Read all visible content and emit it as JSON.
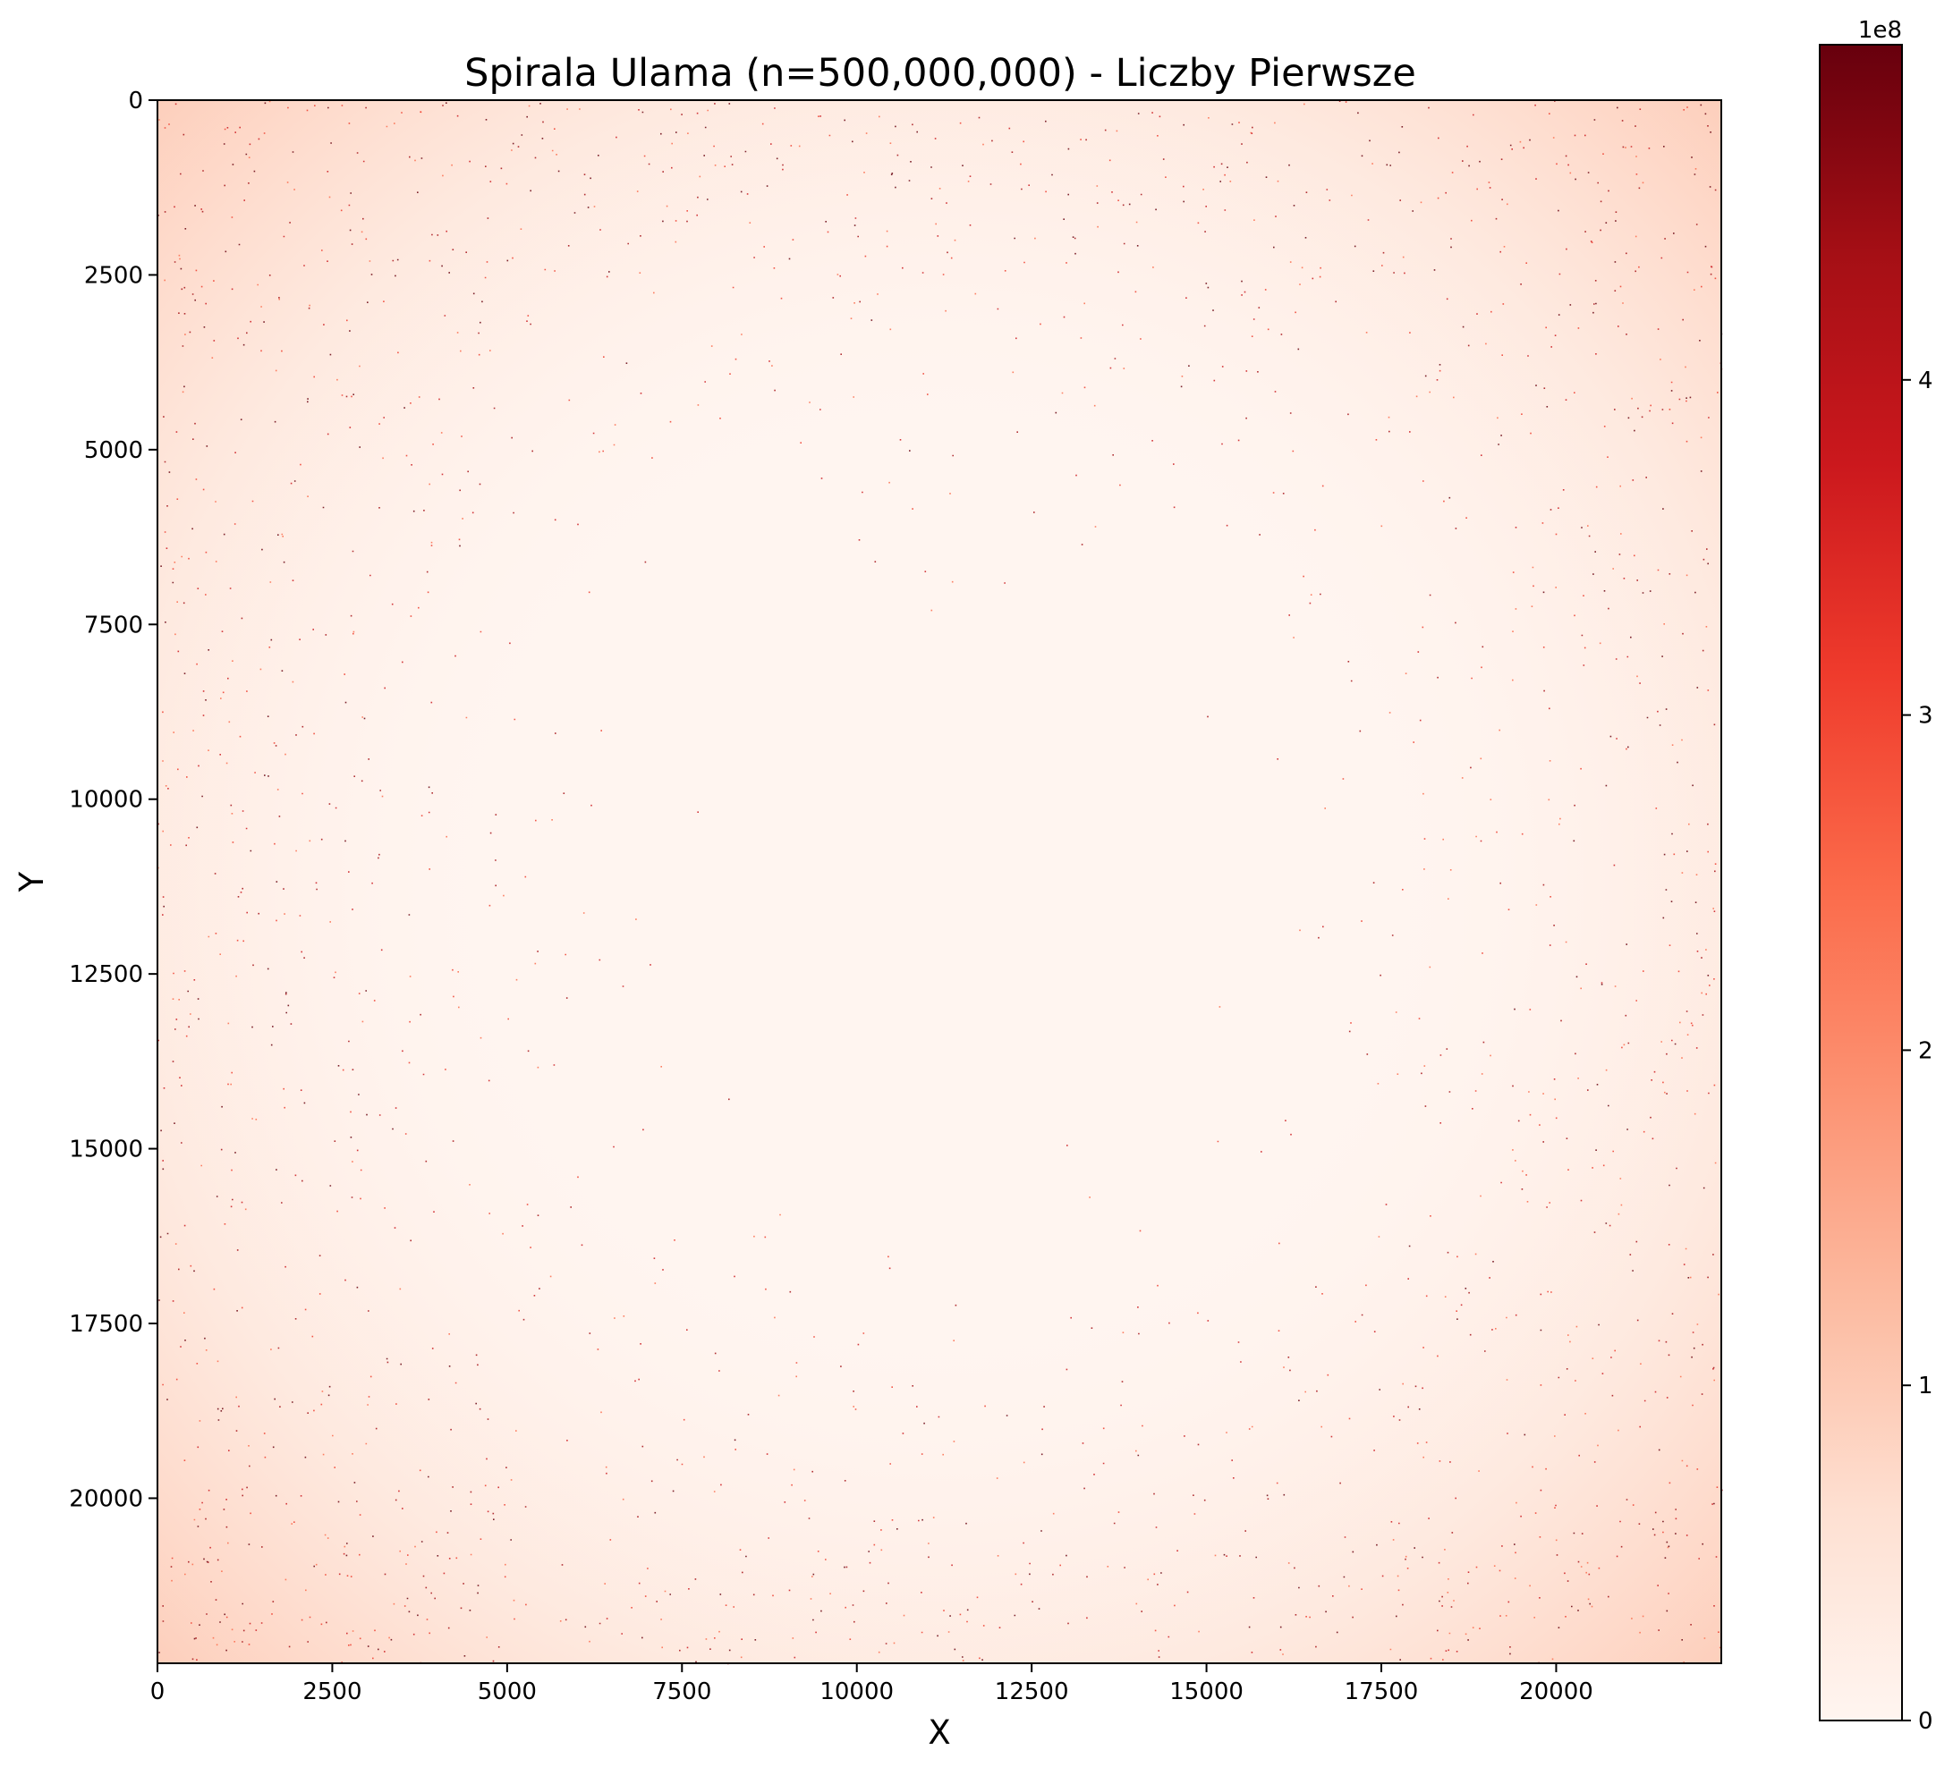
{
  "chart_data": {
    "type": "heatmap",
    "title": "Spirala Ulama (n=500,000,000) - Liczby Pierwsze",
    "xlabel": "X",
    "ylabel": "Y",
    "xlim": [
      0,
      22361
    ],
    "ylim": [
      22361,
      0
    ],
    "x_ticks": [
      0,
      2500,
      5000,
      7500,
      10000,
      12500,
      15000,
      17500,
      20000
    ],
    "x_tick_labels": [
      "0",
      "2500",
      "5000",
      "7500",
      "10000",
      "12500",
      "15000",
      "17500",
      "20000"
    ],
    "y_ticks": [
      0,
      2500,
      5000,
      7500,
      10000,
      12500,
      15000,
      17500,
      20000
    ],
    "y_tick_labels": [
      "0",
      "2500",
      "5000",
      "7500",
      "10000",
      "12500",
      "15000",
      "17500",
      "20000"
    ],
    "colormap": "Reds",
    "colorbar": {
      "min": 0,
      "max": 500000000,
      "ticks": [
        0,
        100000000,
        200000000,
        300000000,
        400000000
      ],
      "tick_labels": [
        "0",
        "1",
        "2",
        "3",
        "4"
      ],
      "offset_label": "1e8"
    },
    "grid": false,
    "background_color": "#fff5f0",
    "colors": [
      "#fff5f0",
      "#fee0d2",
      "#fcbba1",
      "#fc9272",
      "#fb6a4a",
      "#ef3b2c",
      "#cb181d",
      "#a50f15",
      "#67000d"
    ]
  }
}
